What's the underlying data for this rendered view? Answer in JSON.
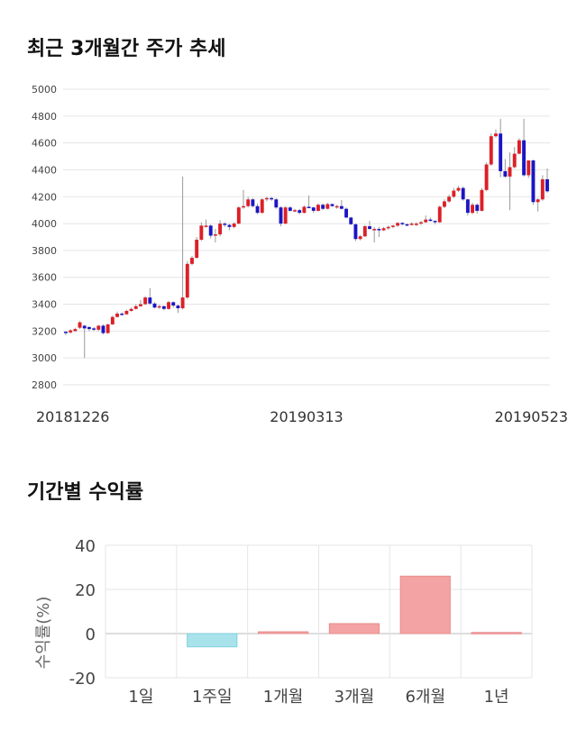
{
  "titles": {
    "price_trend": "최근 3개월간 주가 추세",
    "period_returns": "기간별 수익률"
  },
  "colors": {
    "up": "#dd1f26",
    "down": "#1b16c4",
    "wick": "#999999",
    "grid": "#e5e5e5",
    "positive_bar": "#f4a3a4",
    "negative_bar": "#a8e3ec"
  },
  "chart_data": [
    {
      "type": "candlestick",
      "title": "최근 3개월간 주가 추세",
      "ylim": [
        2800,
        5000
      ],
      "yticks": [
        2800,
        3000,
        3200,
        3400,
        3600,
        3800,
        4000,
        4200,
        4400,
        4600,
        4800,
        5000
      ],
      "x_tick_labels": [
        "20181226",
        "20190313",
        "20190523"
      ],
      "closes": [
        3185,
        3205,
        3215,
        3265,
        3220,
        3215,
        3210,
        3240,
        3185,
        3250,
        3305,
        3330,
        3325,
        3350,
        3365,
        3385,
        3400,
        3450,
        3405,
        3375,
        3385,
        3365,
        3415,
        3390,
        3370,
        3450,
        3700,
        3745,
        3880,
        3985,
        3985,
        3910,
        3920,
        4000,
        3990,
        3975,
        4000,
        4120,
        4130,
        4180,
        4130,
        4080,
        4180,
        4190,
        4180,
        4120,
        4000,
        4120,
        4095,
        4100,
        4080,
        4125,
        4120,
        4095,
        4140,
        4110,
        4145,
        4130,
        4130,
        4110,
        4045,
        3995,
        3885,
        3905,
        3980,
        3960,
        3960,
        3950,
        3965,
        3975,
        3985,
        4005,
        3995,
        3990,
        4000,
        4000,
        4010,
        4030,
        4020,
        4010,
        4125,
        4165,
        4200,
        4245,
        4265,
        4180,
        4080,
        4140,
        4095,
        4250,
        4440,
        4650,
        4670,
        4390,
        4350,
        4420,
        4520,
        4620,
        4360,
        4470,
        4160,
        4180,
        4330,
        4240
      ],
      "series": [
        {
          "name": "",
          "values": [
            [
              3195,
              3200,
              3170,
              3185
            ],
            [
              3190,
              3215,
              3180,
              3205
            ],
            [
              3200,
              3225,
              3195,
              3215
            ],
            [
              3225,
              3275,
              3215,
              3265
            ],
            [
              3240,
              3245,
              3000,
              3220
            ],
            [
              3230,
              3235,
              3200,
              3215
            ],
            [
              3220,
              3230,
              3200,
              3210
            ],
            [
              3210,
              3245,
              3200,
              3240
            ],
            [
              3240,
              3250,
              3175,
              3185
            ],
            [
              3185,
              3255,
              3180,
              3250
            ],
            [
              3250,
              3315,
              3245,
              3305
            ],
            [
              3305,
              3345,
              3300,
              3330
            ],
            [
              3330,
              3340,
              3315,
              3325
            ],
            [
              3325,
              3360,
              3320,
              3350
            ],
            [
              3350,
              3375,
              3345,
              3365
            ],
            [
              3365,
              3400,
              3360,
              3385
            ],
            [
              3385,
              3430,
              3380,
              3400
            ],
            [
              3400,
              3460,
              3395,
              3450
            ],
            [
              3450,
              3520,
              3395,
              3405
            ],
            [
              3405,
              3415,
              3370,
              3375
            ],
            [
              3375,
              3395,
              3365,
              3385
            ],
            [
              3385,
              3390,
              3355,
              3365
            ],
            [
              3365,
              3425,
              3360,
              3415
            ],
            [
              3415,
              3420,
              3375,
              3390
            ],
            [
              3390,
              3400,
              3335,
              3370
            ],
            [
              3370,
              4350,
              3360,
              3450
            ],
            [
              3450,
              3720,
              3440,
              3700
            ],
            [
              3700,
              3760,
              3690,
              3745
            ],
            [
              3745,
              3900,
              3740,
              3880
            ],
            [
              3880,
              4010,
              3870,
              3985
            ],
            [
              3985,
              4030,
              3970,
              3985
            ],
            [
              3985,
              3995,
              3890,
              3910
            ],
            [
              3910,
              3960,
              3860,
              3920
            ],
            [
              3920,
              4025,
              3905,
              4000
            ],
            [
              4000,
              4010,
              3975,
              3990
            ],
            [
              3990,
              4000,
              3950,
              3975
            ],
            [
              3975,
              4010,
              3965,
              4000
            ],
            [
              4000,
              4130,
              3995,
              4120
            ],
            [
              4120,
              4250,
              4110,
              4130
            ],
            [
              4130,
              4200,
              4120,
              4180
            ],
            [
              4180,
              4190,
              4120,
              4130
            ],
            [
              4130,
              4150,
              4070,
              4080
            ],
            [
              4080,
              4190,
              4075,
              4180
            ],
            [
              4180,
              4200,
              4165,
              4190
            ],
            [
              4190,
              4200,
              4170,
              4180
            ],
            [
              4180,
              4190,
              4110,
              4120
            ],
            [
              4120,
              4130,
              3980,
              4000
            ],
            [
              4000,
              4130,
              3995,
              4120
            ],
            [
              4120,
              4130,
              4090,
              4095
            ],
            [
              4095,
              4110,
              4085,
              4100
            ],
            [
              4100,
              4110,
              4070,
              4080
            ],
            [
              4080,
              4135,
              4075,
              4125
            ],
            [
              4125,
              4210,
              4115,
              4120
            ],
            [
              4120,
              4125,
              4080,
              4095
            ],
            [
              4095,
              4150,
              4090,
              4140
            ],
            [
              4140,
              4150,
              4100,
              4110
            ],
            [
              4110,
              4155,
              4105,
              4145
            ],
            [
              4145,
              4150,
              4125,
              4130
            ],
            [
              4130,
              4140,
              4110,
              4130
            ],
            [
              4130,
              4175,
              4105,
              4110
            ],
            [
              4110,
              4120,
              4040,
              4045
            ],
            [
              4045,
              4050,
              3990,
              3995
            ],
            [
              3995,
              4000,
              3870,
              3885
            ],
            [
              3885,
              3915,
              3875,
              3905
            ],
            [
              3905,
              3990,
              3900,
              3980
            ],
            [
              3980,
              4020,
              3955,
              3960
            ],
            [
              3960,
              3975,
              3860,
              3960
            ],
            [
              3960,
              3975,
              3900,
              3950
            ],
            [
              3950,
              3975,
              3945,
              3965
            ],
            [
              3965,
              3985,
              3955,
              3975
            ],
            [
              3975,
              3990,
              3965,
              3985
            ],
            [
              3985,
              4010,
              3975,
              4005
            ],
            [
              4005,
              4010,
              3985,
              3995
            ],
            [
              3995,
              4000,
              3980,
              3990
            ],
            [
              3990,
              4010,
              3985,
              4000
            ],
            [
              4000,
              4010,
              3980,
              4000
            ],
            [
              4000,
              4020,
              3990,
              4010
            ],
            [
              4010,
              4060,
              4005,
              4030
            ],
            [
              4030,
              4045,
              4015,
              4020
            ],
            [
              4020,
              4025,
              3995,
              4010
            ],
            [
              4010,
              4135,
              4005,
              4125
            ],
            [
              4125,
              4180,
              4115,
              4165
            ],
            [
              4165,
              4215,
              4155,
              4200
            ],
            [
              4200,
              4265,
              4190,
              4245
            ],
            [
              4245,
              4280,
              4235,
              4265
            ],
            [
              4265,
              4275,
              4170,
              4180
            ],
            [
              4180,
              4185,
              4060,
              4080
            ],
            [
              4080,
              4155,
              4070,
              4140
            ],
            [
              4140,
              4150,
              4075,
              4095
            ],
            [
              4095,
              4265,
              4090,
              4250
            ],
            [
              4250,
              4455,
              4240,
              4440
            ],
            [
              4440,
              4670,
              4430,
              4650
            ],
            [
              4650,
              4700,
              4640,
              4670
            ],
            [
              4670,
              4780,
              4345,
              4390
            ],
            [
              4390,
              4480,
              4340,
              4350
            ],
            [
              4350,
              4530,
              4100,
              4420
            ],
            [
              4420,
              4570,
              4410,
              4520
            ],
            [
              4520,
              4635,
              4515,
              4620
            ],
            [
              4620,
              4780,
              4350,
              4360
            ],
            [
              4360,
              4470,
              4340,
              4470
            ],
            [
              4470,
              4475,
              4140,
              4160
            ],
            [
              4160,
              4190,
              4090,
              4180
            ],
            [
              4180,
              4360,
              4170,
              4330
            ],
            [
              4330,
              4410,
              4230,
              4240
            ]
          ]
        }
      ]
    },
    {
      "type": "bar",
      "title": "기간별 수익률",
      "categories": [
        "1일",
        "1주일",
        "1개월",
        "3개월",
        "6개월",
        "1년"
      ],
      "values": [
        0,
        -6,
        0.8,
        4.5,
        26,
        0.5
      ],
      "ylabel": "수익률(%)",
      "ylim": [
        -20,
        40
      ],
      "yticks": [
        -20,
        0,
        20,
        40
      ]
    }
  ]
}
